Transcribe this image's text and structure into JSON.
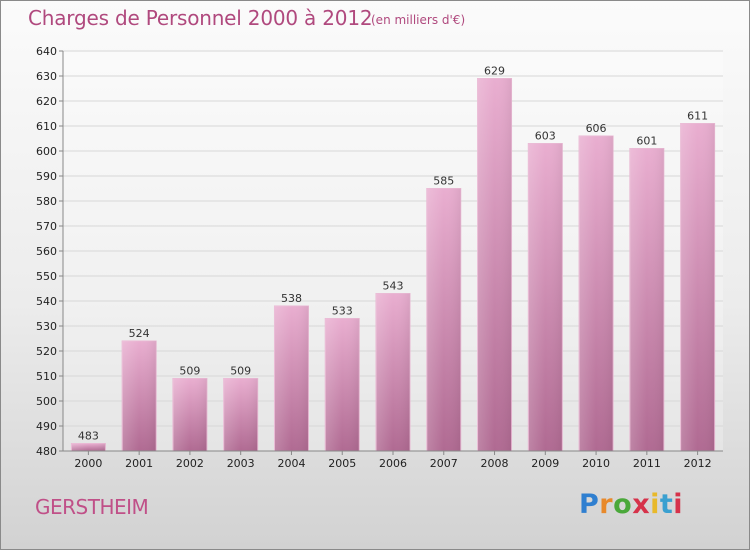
{
  "header": {
    "title": "Charges de Personnel 2000 à 2012",
    "subtitle": "(en milliers d'€)"
  },
  "footer": {
    "city": "GERSTHEIM",
    "logo": "Proxiti"
  },
  "colors": {
    "title": "#b0497e",
    "bar_top": "#e7a9cb",
    "bar_bottom": "#b46d95",
    "grid": "#d7d7d7",
    "axis_text": "#222222"
  },
  "chart_data": {
    "type": "bar",
    "categories": [
      "2000",
      "2001",
      "2002",
      "2003",
      "2004",
      "2005",
      "2006",
      "2007",
      "2008",
      "2009",
      "2010",
      "2011",
      "2012"
    ],
    "values": [
      483,
      524,
      509,
      509,
      538,
      533,
      543,
      585,
      629,
      603,
      606,
      601,
      611
    ],
    "data_labels": [
      "483",
      "524",
      "509",
      "509",
      "538",
      "533",
      "543",
      "585",
      "629",
      "603",
      "606",
      "601",
      "611"
    ],
    "title": "Charges de Personnel 2000 à 2012",
    "ylim": [
      480,
      640
    ],
    "yticks": [
      480,
      490,
      500,
      510,
      520,
      530,
      540,
      550,
      560,
      570,
      580,
      590,
      600,
      610,
      620,
      630,
      640
    ],
    "grid": true,
    "legend": "none"
  }
}
